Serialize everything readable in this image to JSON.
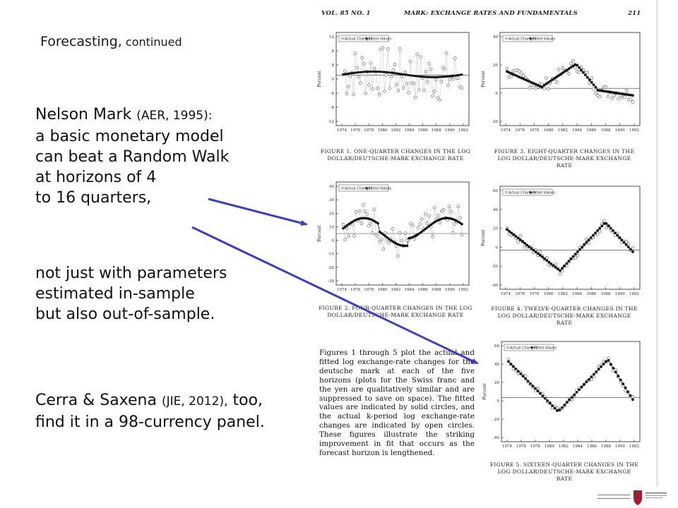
{
  "slide": {
    "subtitle_main": "Forecasting,",
    "subtitle_small": " continued",
    "block1": [
      {
        "text": "Nelson Mark ",
        "cite": "(AER, 1995):",
        "rest": ""
      },
      {
        "text": "a basic monetary model",
        "cite": "",
        "rest": ""
      },
      {
        "text": "can beat a Random Walk",
        "cite": "",
        "rest": ""
      },
      {
        "text": "at horizons of 4",
        "cite": "",
        "rest": ""
      },
      {
        "text": "to 16 quarters,",
        "cite": "",
        "rest": ""
      }
    ],
    "block2": [
      "not just with parameters",
      "estimated in-sample",
      "but also out-of-sample."
    ],
    "block3": [
      {
        "text": "Cerra & Saxena ",
        "cite": "(JIE, 2012),",
        "rest": " too,"
      },
      {
        "text": "find it in a 98-currency panel.",
        "cite": "",
        "rest": ""
      }
    ]
  },
  "paper": {
    "header_left": "VOL. 85 NO. 1",
    "header_center": "MARK: EXCHANGE RATES AND FUNDAMENTALS",
    "header_page": "211",
    "legend_actual": "Actual Changes",
    "legend_fitted": "Fitted Values",
    "y_label": "Percent",
    "x_ticks": [
      "1974",
      "1976",
      "1978",
      "1980",
      "1982",
      "1984",
      "1986",
      "1988",
      "1990",
      "1992"
    ],
    "fig1_caption": [
      "FIGURE 1. ONE-QUARTER CHANGES IN THE LOG",
      "DOLLAR/DEUTSCHE-MARK EXCHANGE RATE"
    ],
    "fig2_caption": [
      "FIGURE 2. FOUR-QUARTER CHANGES IN THE LOG",
      "DOLLAR/DEUTSCHE-MARK EXCHANGE RATE"
    ],
    "fig3_caption": [
      "FIGURE 3. EIGHT-QUARTER CHANGES IN THE",
      "LOG DOLLAR/DEUTSCHE-MARK EXCHANGE",
      "RATE"
    ],
    "fig4_caption": [
      "FIGURE 4. TWELVE-QUARTER CHANGES IN THE",
      "LOG DOLLAR/DEUTSCHE-MARK EXCHANGE",
      "RATE"
    ],
    "fig5_caption": [
      "FIGURE 5. SIXTEEN-QUARTER CHANGES IN THE",
      "LOG DOLLAR/DEUTSCHE-MARK EXCHANGE",
      "RATE"
    ],
    "fig1_yticks": [
      "12",
      "8",
      "4",
      "0",
      "-4",
      "-8",
      "-12"
    ],
    "fig2_yticks": [
      "40",
      "30",
      "20",
      "10",
      "0",
      "-10",
      "-20",
      "-30"
    ],
    "fig3_yticks": [
      "40",
      "20",
      "0",
      "-20"
    ],
    "fig4_yticks": [
      "60",
      "40",
      "20",
      "0",
      "-20",
      "-40"
    ],
    "fig5_yticks": [
      "60",
      "40",
      "20",
      "0",
      "-20",
      "-40"
    ],
    "paragraph": "Figures 1 through 5 plot the actual and fitted log exchange-rate changes for the deutsche mark at each of the five horizons (plots for the Swiss franc and the yen are qualitatively similar and are suppressed to save on space). The fitted values are indicated by solid circles, and the actual k-period log exchange-rate changes are indicated by open circles. These figures illustrate the striking improvement in fit that occurs as the forecast horizon is lengthened."
  },
  "colors": {
    "arrow": "#3a3fc4",
    "text": "#111111",
    "logo_red": "#a51c30"
  }
}
